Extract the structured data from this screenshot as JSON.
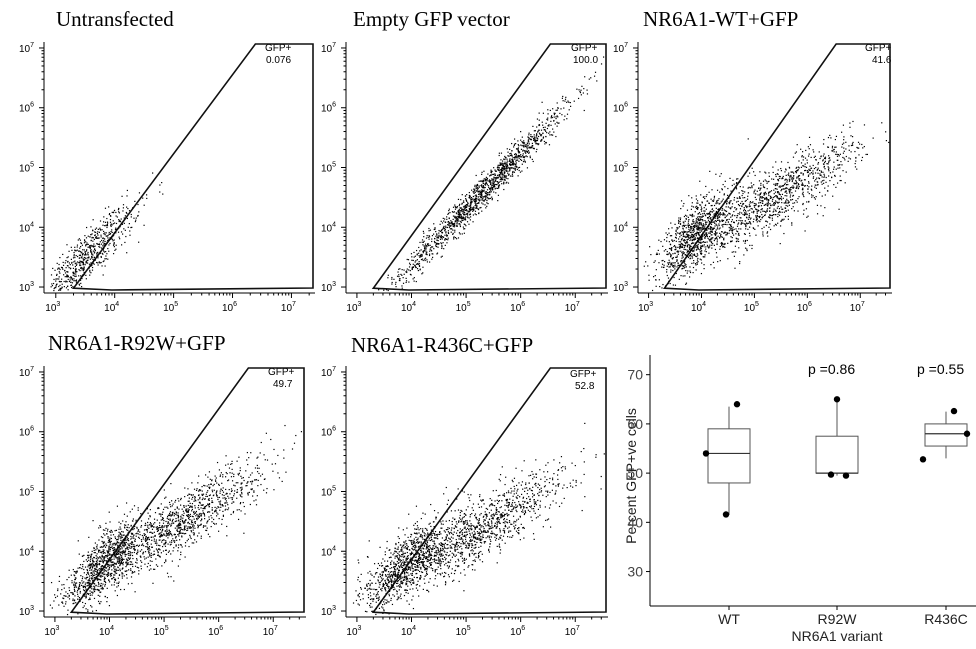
{
  "chart_data": [
    {
      "type": "scatter",
      "title": "Untransfected",
      "x_ticks": [
        "10^3",
        "10^4",
        "10^5",
        "10^6",
        "10^7"
      ],
      "y_ticks": [
        "10^3",
        "10^4",
        "10^5",
        "10^6",
        "10^7"
      ],
      "scale": "log",
      "gate": {
        "label": "GFP+",
        "value": "0.076"
      },
      "populations": [
        {
          "x_log_center": 3.5,
          "y_log_center": 3.5,
          "spread_along": 0.6,
          "spread_across": 0.15,
          "slope": 1.0,
          "n": 700
        }
      ]
    },
    {
      "type": "scatter",
      "title": "Empty GFP vector",
      "x_ticks": [
        "10^3",
        "10^4",
        "10^5",
        "10^6",
        "10^7"
      ],
      "y_ticks": [
        "10^3",
        "10^4",
        "10^5",
        "10^6",
        "10^7"
      ],
      "scale": "log",
      "gate": {
        "label": "GFP+",
        "value": "100.0"
      },
      "populations": [
        {
          "x_log_center": 5.3,
          "y_log_center": 4.6,
          "spread_along": 1.1,
          "spread_across": 0.1,
          "slope": 0.95,
          "n": 1400
        }
      ]
    },
    {
      "type": "scatter",
      "title": "NR6A1-WT+GFP",
      "x_ticks": [
        "10^3",
        "10^4",
        "10^5",
        "10^6",
        "10^7"
      ],
      "y_ticks": [
        "10^3",
        "10^4",
        "10^5",
        "10^6",
        "10^7"
      ],
      "scale": "log",
      "gate": {
        "label": "GFP+",
        "value": "41.6"
      },
      "populations": [
        {
          "x_log_center": 3.9,
          "y_log_center": 3.9,
          "spread_along": 0.5,
          "spread_across": 0.2,
          "slope": 1.0,
          "n": 900
        },
        {
          "x_log_center": 5.4,
          "y_log_center": 4.5,
          "spread_along": 0.9,
          "spread_across": 0.22,
          "slope": 0.6,
          "n": 1100
        }
      ]
    },
    {
      "type": "scatter",
      "title": "NR6A1-R92W+GFP",
      "x_ticks": [
        "10^3",
        "10^4",
        "10^5",
        "10^6",
        "10^7"
      ],
      "y_ticks": [
        "10^3",
        "10^4",
        "10^5",
        "10^6",
        "10^7"
      ],
      "scale": "log",
      "gate": {
        "label": "GFP+",
        "value": "49.7"
      },
      "populations": [
        {
          "x_log_center": 3.9,
          "y_log_center": 3.8,
          "spread_along": 0.5,
          "spread_across": 0.2,
          "slope": 1.0,
          "n": 900
        },
        {
          "x_log_center": 5.3,
          "y_log_center": 4.5,
          "spread_along": 0.9,
          "spread_across": 0.22,
          "slope": 0.6,
          "n": 1100
        }
      ]
    },
    {
      "type": "scatter",
      "title": "NR6A1-R436C+GFP",
      "x_ticks": [
        "10^3",
        "10^4",
        "10^5",
        "10^6",
        "10^7"
      ],
      "y_ticks": [
        "10^3",
        "10^4",
        "10^5",
        "10^6",
        "10^7"
      ],
      "scale": "log",
      "gate": {
        "label": "GFP+",
        "value": "52.8"
      },
      "populations": [
        {
          "x_log_center": 3.9,
          "y_log_center": 3.8,
          "spread_along": 0.5,
          "spread_across": 0.2,
          "slope": 1.0,
          "n": 900
        },
        {
          "x_log_center": 5.3,
          "y_log_center": 4.4,
          "spread_along": 0.9,
          "spread_across": 0.22,
          "slope": 0.6,
          "n": 1100
        }
      ]
    },
    {
      "type": "box",
      "categories": [
        "WT",
        "R92W",
        "R436C"
      ],
      "xlabel": "NR6A1 variant",
      "ylabel": "Percent GFP+ve cells",
      "ylim": [
        23,
        74
      ],
      "y_ticks": [
        30,
        40,
        50,
        60,
        70
      ],
      "boxes": [
        {
          "q1": 48,
          "median": 54,
          "q3": 59,
          "whisker_low": 41.5,
          "whisker_high": 63.5
        },
        {
          "q1": 50,
          "median": 50,
          "q3": 57.5,
          "whisker_low": 49.5,
          "whisker_high": 65
        },
        {
          "q1": 55.5,
          "median": 58,
          "q3": 60,
          "whisker_low": 53,
          "whisker_high": 62.5
        }
      ],
      "points": [
        [
          54,
          64,
          41.6
        ],
        [
          65,
          49.7,
          49.5
        ],
        [
          52.8,
          62.6,
          58
        ]
      ],
      "p_values": [
        "",
        "p =0.86",
        "p =0.55"
      ]
    }
  ]
}
